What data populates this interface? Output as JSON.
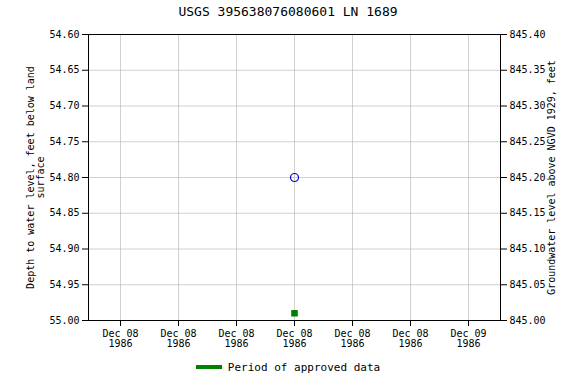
{
  "chart_data": {
    "type": "scatter",
    "title": "USGS 395638076080601 LN  1689",
    "ylabel": "Depth to water level, feet below land\nsurface",
    "y2label": "Groundwater level above NGVD 1929, feet",
    "categories": [
      "Dec 08\n1986",
      "Dec 08\n1986",
      "Dec 08\n1986",
      "Dec 08\n1986",
      "Dec 08\n1986",
      "Dec 08\n1986",
      "Dec 09\n1986"
    ],
    "ylim": [
      55,
      54.6
    ],
    "yticks": [
      {
        "value": 54.6,
        "label": "54.60"
      },
      54.65,
      {
        "value": 54.7,
        "label": "54.70"
      },
      54.75,
      {
        "value": 54.8,
        "label": "54.80"
      },
      54.85,
      {
        "value": 54.9,
        "label": "54.90"
      },
      54.95,
      {
        "value": 55,
        "label": "55.00"
      }
    ],
    "y2lim": [
      845,
      845.4
    ],
    "y2ticks": [
      {
        "value": 845.4,
        "label": "845.40"
      },
      845.35,
      {
        "value": 845.3,
        "label": "845.30"
      },
      845.25,
      {
        "value": 845.2,
        "label": "845.20"
      },
      845.15,
      {
        "value": 845.1,
        "label": "845.10"
      },
      845.05,
      {
        "value": 845,
        "label": "845.00"
      }
    ],
    "grid": true,
    "legend": "bottom",
    "series": [
      {
        "color": "#0000cc",
        "marker": "circle",
        "values": [
          null,
          null,
          null,
          54.8,
          null,
          null,
          null
        ]
      },
      {
        "name": "Period of approved data",
        "color": "#008000",
        "marker": "square",
        "values": [
          null,
          null,
          null,
          54.99,
          null,
          null,
          null
        ]
      }
    ]
  }
}
